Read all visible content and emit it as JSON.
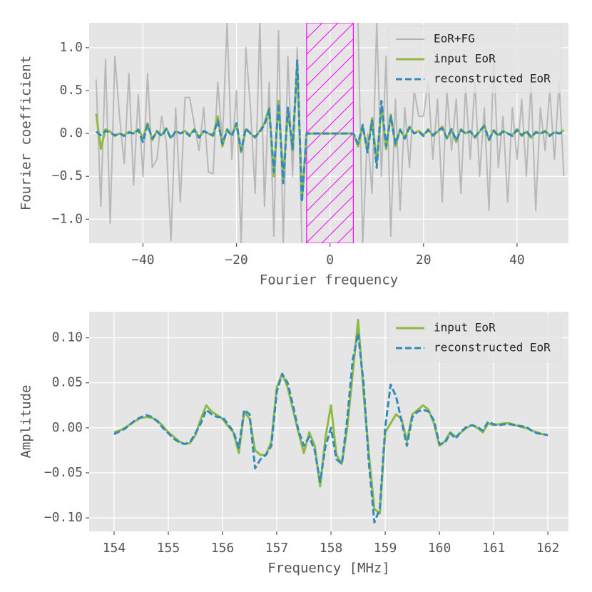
{
  "chart_data": [
    {
      "type": "line",
      "x": [
        -50,
        -49,
        -48,
        -47,
        -46,
        -45,
        -44,
        -43,
        -42,
        -41,
        -40,
        -39,
        -38,
        -37,
        -36,
        -35,
        -34,
        -33,
        -32,
        -31,
        -30,
        -29,
        -28,
        -27,
        -26,
        -25,
        -24,
        -23,
        -22,
        -21,
        -20,
        -19,
        -18,
        -17,
        -16,
        -15,
        -14,
        -13,
        -12,
        -11,
        -10,
        -9,
        -8,
        -7,
        -6,
        -5,
        -4,
        -3,
        -2,
        -1,
        0,
        1,
        2,
        3,
        4,
        5,
        6,
        7,
        8,
        9,
        10,
        11,
        12,
        13,
        14,
        15,
        16,
        17,
        18,
        19,
        20,
        21,
        22,
        23,
        24,
        25,
        26,
        27,
        28,
        29,
        30,
        31,
        32,
        33,
        34,
        35,
        36,
        37,
        38,
        39,
        40,
        41,
        42,
        43,
        44,
        45,
        46,
        47,
        48,
        49,
        50
      ],
      "series": [
        {
          "name": "EoR+FG",
          "color": "#b0b0b0",
          "dash": false,
          "width": 2,
          "values": [
            0.63,
            -0.85,
            0.86,
            -1.05,
            0.9,
            0.2,
            -0.35,
            0.7,
            -0.6,
            0.45,
            -0.5,
            0.7,
            -0.4,
            -0.3,
            0.2,
            -0.1,
            -1.25,
            0.3,
            -0.8,
            0.42,
            0.42,
            0.1,
            -0.2,
            0.3,
            -0.45,
            -0.47,
            0.6,
            -0.1,
            1.3,
            -0.3,
            0.5,
            -1.3,
            1.0,
            0.3,
            -0.7,
            1.3,
            -0.85,
            0.6,
            -1.2,
            1.2,
            -1.3,
            0.9,
            -0.5,
            1.0,
            -1.3,
            -1.3,
            null,
            null,
            null,
            null,
            null,
            null,
            null,
            null,
            null,
            1.3,
            1.3,
            -1.3,
            0.0,
            -0.7,
            1.3,
            -0.5,
            0.9,
            -1.2,
            0.4,
            -0.9,
            0.3,
            -0.4,
            0.5,
            0.2,
            0.2,
            0.6,
            -0.3,
            0.4,
            -0.8,
            0.5,
            -0.2,
            0.4,
            -0.7,
            0.55,
            -0.3,
            0.6,
            -0.5,
            0.3,
            -0.9,
            0.9,
            -0.4,
            0.2,
            -0.8,
            0.3,
            -0.3,
            0.4,
            -0.5,
            0.6,
            -0.9,
            0.3,
            -0.2,
            0.5,
            -0.3,
            0.6,
            -0.5
          ]
        },
        {
          "name": "input EoR",
          "color": "#8eba42",
          "dash": false,
          "width": 3,
          "values": [
            0.23,
            -0.18,
            0.05,
            0.02,
            -0.03,
            0.0,
            -0.02,
            0.02,
            0.0,
            0.05,
            -0.05,
            0.12,
            -0.08,
            0.03,
            -0.02,
            0.06,
            -0.05,
            0.02,
            0.0,
            0.03,
            -0.02,
            0.05,
            -0.04,
            0.02,
            0.0,
            -0.03,
            0.2,
            -0.15,
            0.05,
            -0.02,
            0.1,
            -0.22,
            0.05,
            0.0,
            -0.05,
            0.03,
            0.12,
            0.3,
            -0.5,
            0.38,
            -0.52,
            0.28,
            -0.2,
            0.82,
            -0.78,
            0,
            0,
            0,
            0,
            0,
            0,
            0,
            0,
            0,
            0,
            0,
            -0.15,
            0.08,
            -0.2,
            0.18,
            -0.35,
            0.32,
            -0.18,
            0.22,
            -0.15,
            0.05,
            -0.05,
            0.08,
            0.0,
            0.03,
            -0.02,
            0.05,
            -0.03,
            0.02,
            0.08,
            -0.06,
            0.04,
            -0.1,
            0.05,
            0.0,
            0.03,
            -0.05,
            0.02,
            0.1,
            -0.08,
            0.04,
            -0.02,
            0.03,
            0.0,
            -0.02,
            0.05,
            -0.03,
            0.02,
            -0.05,
            0.02,
            0.0,
            0.03,
            -0.02,
            0.01,
            0.0,
            0.04
          ]
        },
        {
          "name": "reconstructed EoR",
          "color": "#348abd",
          "dash": true,
          "width": 3,
          "values": [
            0.02,
            -0.02,
            0.03,
            0.01,
            -0.02,
            0.0,
            -0.03,
            0.01,
            0.0,
            0.04,
            -0.1,
            0.1,
            -0.06,
            0.02,
            -0.03,
            0.05,
            -0.06,
            0.03,
            0.0,
            0.02,
            -0.03,
            0.04,
            -0.05,
            0.03,
            0.0,
            -0.02,
            0.15,
            -0.12,
            0.04,
            -0.03,
            0.12,
            -0.2,
            0.06,
            0.0,
            -0.04,
            0.02,
            0.1,
            0.28,
            -0.45,
            0.35,
            -0.58,
            0.3,
            -0.18,
            0.85,
            -0.8,
            0,
            0,
            0,
            0,
            0,
            0,
            0,
            0,
            0,
            0,
            0,
            -0.12,
            0.1,
            -0.22,
            0.15,
            -0.4,
            0.38,
            -0.15,
            0.2,
            -0.12,
            0.04,
            -0.06,
            0.07,
            0.0,
            0.02,
            -0.03,
            0.04,
            -0.02,
            0.03,
            0.06,
            -0.05,
            0.05,
            -0.08,
            0.04,
            0.0,
            0.02,
            -0.04,
            0.03,
            0.08,
            -0.07,
            0.03,
            -0.03,
            0.02,
            0.0,
            -0.03,
            0.04,
            -0.02,
            0.03,
            -0.04,
            0.01,
            0.0,
            0.02,
            -0.03,
            0.02,
            0.0,
            0.01
          ]
        }
      ],
      "span": {
        "x": [
          -5,
          5
        ],
        "color": "#ff00ff",
        "hatch": true
      },
      "xlabel": "Fourier frequency",
      "ylabel": "Fourier coefficient",
      "xlim": [
        -51.5,
        51
      ],
      "ylim": [
        -1.28,
        1.29
      ],
      "xticks": [
        {
          "value": -40,
          "label": "−40"
        },
        {
          "value": -20,
          "label": "−20"
        },
        0,
        20,
        40
      ],
      "yticks": [
        {
          "value": -1.0,
          "label": "−1.0"
        },
        {
          "value": -0.5,
          "label": "−0.5"
        },
        {
          "value": 0.0,
          "label": "0.0"
        },
        {
          "value": 0.5,
          "label": "0.5"
        },
        {
          "value": 1.0,
          "label": "1.0"
        }
      ],
      "grid": true,
      "legend": "upper right"
    },
    {
      "type": "line",
      "x": [
        154.0,
        154.1,
        154.2,
        154.3,
        154.4,
        154.5,
        154.6,
        154.7,
        154.8,
        154.9,
        155.0,
        155.1,
        155.2,
        155.3,
        155.4,
        155.5,
        155.6,
        155.7,
        155.8,
        155.9,
        156.0,
        156.1,
        156.2,
        156.3,
        156.4,
        156.5,
        156.6,
        156.7,
        156.8,
        156.9,
        157.0,
        157.1,
        157.2,
        157.3,
        157.4,
        157.5,
        157.6,
        157.7,
        157.8,
        157.9,
        158.0,
        158.1,
        158.2,
        158.3,
        158.4,
        158.5,
        158.6,
        158.7,
        158.8,
        158.9,
        159.0,
        159.1,
        159.2,
        159.3,
        159.4,
        159.5,
        159.6,
        159.7,
        159.8,
        159.9,
        160.0,
        160.1,
        160.2,
        160.3,
        160.4,
        160.5,
        160.6,
        160.7,
        160.8,
        160.9,
        161.0,
        161.1,
        161.2,
        161.3,
        161.4,
        161.5,
        161.6,
        161.7,
        161.8,
        161.9,
        162.0
      ],
      "series": [
        {
          "name": "input EoR",
          "color": "#8eba42",
          "dash": false,
          "width": 3,
          "values": [
            -0.005,
            -0.003,
            0.0,
            0.004,
            0.008,
            0.011,
            0.012,
            0.011,
            0.008,
            0.002,
            -0.005,
            -0.01,
            -0.015,
            -0.018,
            -0.017,
            -0.008,
            0.01,
            0.025,
            0.018,
            0.014,
            0.01,
            0.002,
            -0.005,
            -0.028,
            0.018,
            0.01,
            -0.025,
            -0.03,
            -0.03,
            -0.015,
            0.045,
            0.06,
            0.045,
            0.02,
            -0.005,
            -0.028,
            -0.005,
            -0.02,
            -0.065,
            -0.01,
            0.025,
            -0.03,
            -0.04,
            0.0,
            0.06,
            0.12,
            0.04,
            -0.03,
            -0.09,
            -0.095,
            -0.005,
            0.005,
            0.015,
            0.01,
            -0.015,
            0.015,
            0.02,
            0.025,
            0.02,
            0.005,
            -0.02,
            -0.015,
            -0.005,
            -0.01,
            -0.005,
            0.0,
            0.003,
            0.0,
            -0.005,
            0.005,
            0.003,
            0.004,
            0.005,
            0.005,
            0.003,
            0.001,
            0.0,
            -0.003,
            -0.005,
            -0.007,
            -0.008
          ]
        },
        {
          "name": "reconstructed EoR",
          "color": "#348abd",
          "dash": true,
          "width": 3,
          "values": [
            -0.007,
            -0.004,
            -0.001,
            0.004,
            0.009,
            0.012,
            0.014,
            0.012,
            0.007,
            0.0,
            -0.006,
            -0.012,
            -0.016,
            -0.018,
            -0.016,
            -0.006,
            0.005,
            0.02,
            0.015,
            0.012,
            0.012,
            0.004,
            -0.004,
            -0.022,
            0.02,
            0.015,
            -0.045,
            -0.035,
            -0.03,
            -0.02,
            0.04,
            0.06,
            0.05,
            0.025,
            -0.003,
            -0.02,
            -0.01,
            -0.025,
            -0.06,
            -0.02,
            0.0,
            -0.035,
            -0.04,
            0.01,
            0.075,
            0.105,
            0.05,
            -0.04,
            -0.105,
            -0.09,
            0.0,
            0.048,
            0.035,
            0.008,
            -0.02,
            0.012,
            0.018,
            0.02,
            0.018,
            0.008,
            -0.018,
            -0.017,
            -0.006,
            -0.012,
            -0.004,
            0.001,
            0.003,
            0.001,
            -0.003,
            0.007,
            0.004,
            0.003,
            0.004,
            0.004,
            0.003,
            0.002,
            0.001,
            -0.003,
            -0.006,
            -0.007,
            -0.008
          ]
        }
      ],
      "xlabel": "Frequency [MHz]",
      "ylabel": "Amplitude",
      "xlim": [
        153.54,
        162.38
      ],
      "ylim": [
        -0.115,
        0.129
      ],
      "xticks": [
        154,
        155,
        156,
        157,
        158,
        159,
        160,
        161,
        162
      ],
      "yticks": [
        {
          "value": -0.1,
          "label": "−0.10"
        },
        {
          "value": -0.05,
          "label": "−0.05"
        },
        {
          "value": 0.0,
          "label": "0.00"
        },
        {
          "value": 0.05,
          "label": "0.05"
        },
        {
          "value": 0.1,
          "label": "0.10"
        }
      ],
      "grid": true,
      "legend": "upper right"
    }
  ]
}
